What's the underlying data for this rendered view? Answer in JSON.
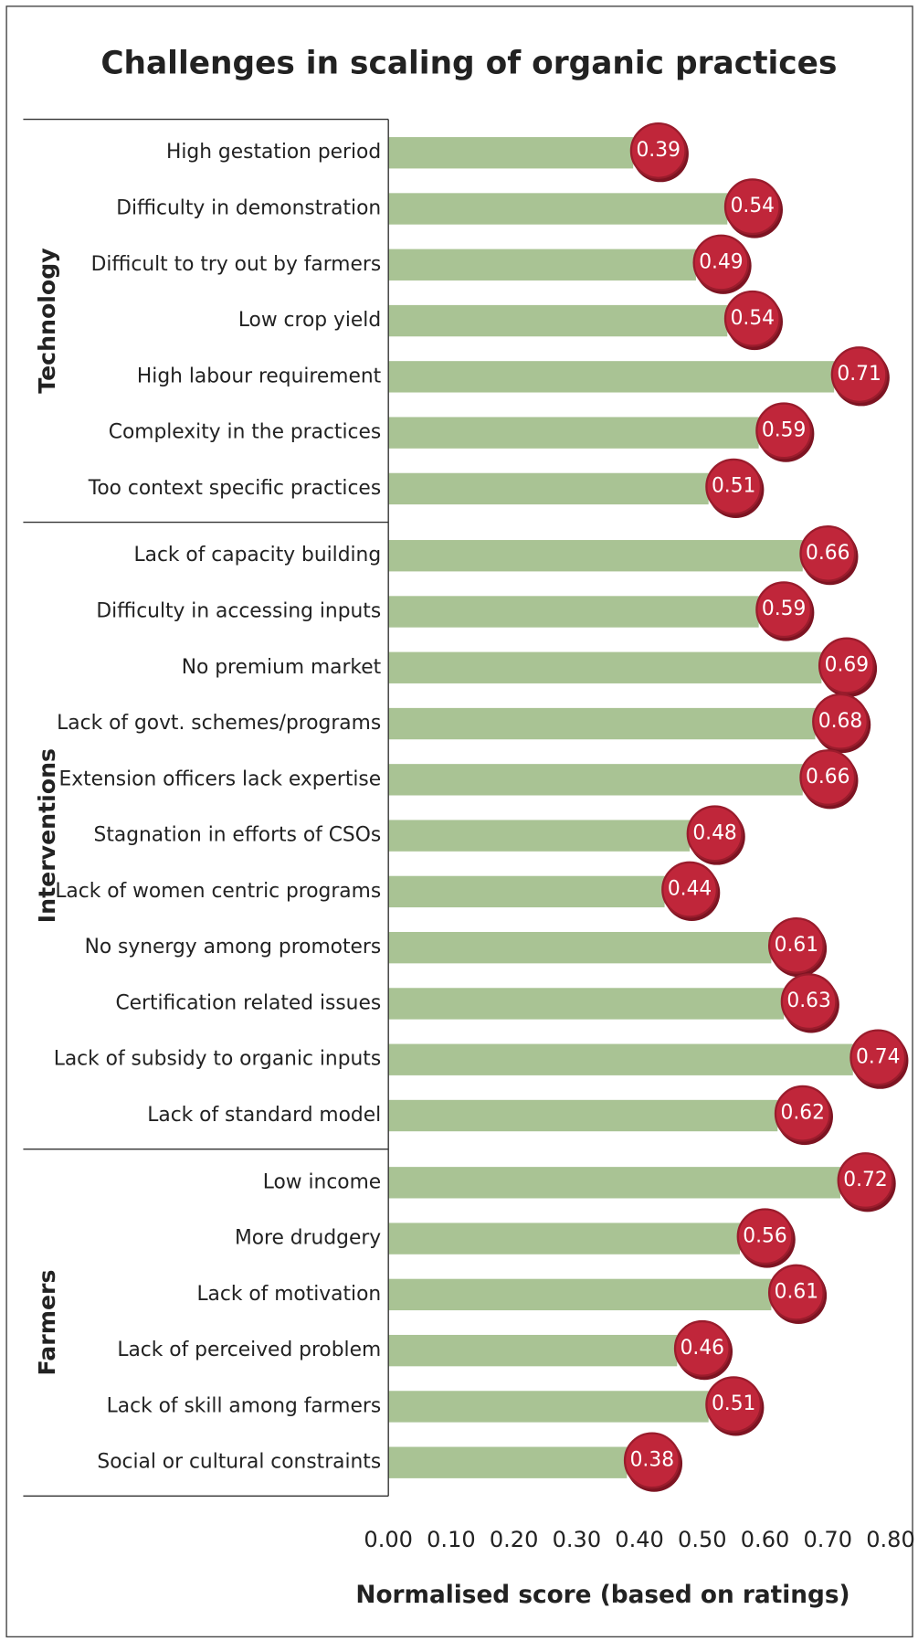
{
  "chart_data": {
    "type": "bar",
    "title": "Challenges in scaling of organic practices",
    "xlabel": "Normalised score (based on ratings)",
    "groups": [
      {
        "name": "Technology",
        "categories": [
          "High gestation period",
          "Difficulty in demonstration",
          "Difficult to try out by farmers",
          "Low crop yield",
          "High labour requirement",
          "Complexity in the practices",
          "Too context specific practices"
        ],
        "values": [
          0.39,
          0.54,
          0.49,
          0.54,
          0.71,
          0.59,
          0.51
        ]
      },
      {
        "name": "Interventions",
        "categories": [
          "Lack of capacity building",
          "Difficulty in accessing inputs",
          "No premium market",
          "Lack of govt. schemes/programs",
          "Extension officers lack expertise",
          "Stagnation in efforts of CSOs",
          "Lack of women centric programs",
          "No synergy among promoters",
          "Certification related issues",
          "Lack of subsidy to organic inputs",
          "Lack of standard model"
        ],
        "values": [
          0.66,
          0.59,
          0.69,
          0.68,
          0.66,
          0.48,
          0.44,
          0.61,
          0.63,
          0.74,
          0.62
        ]
      },
      {
        "name": "Farmers",
        "categories": [
          "Low income",
          "More drudgery",
          "Lack of motivation",
          "Lack of perceived problem",
          "Lack of skill among farmers",
          "Social or cultural constraints"
        ],
        "values": [
          0.72,
          0.56,
          0.61,
          0.46,
          0.51,
          0.38
        ]
      }
    ],
    "xlim": [
      0,
      0.8
    ],
    "xticks": [
      {
        "value": 0,
        "label": "0.00"
      },
      {
        "value": 0.1,
        "label": "0.10"
      },
      {
        "value": 0.2,
        "label": "0.20"
      },
      {
        "value": 0.3,
        "label": "0.30"
      },
      {
        "value": 0.4,
        "label": "0.40"
      },
      {
        "value": 0.5,
        "label": "0.50"
      },
      {
        "value": 0.6,
        "label": "0.60"
      },
      {
        "value": 0.7,
        "label": "0.70"
      },
      {
        "value": 0.8,
        "label": "0.80"
      }
    ],
    "color": "#a9c394",
    "marker_color": "#c0263a"
  }
}
